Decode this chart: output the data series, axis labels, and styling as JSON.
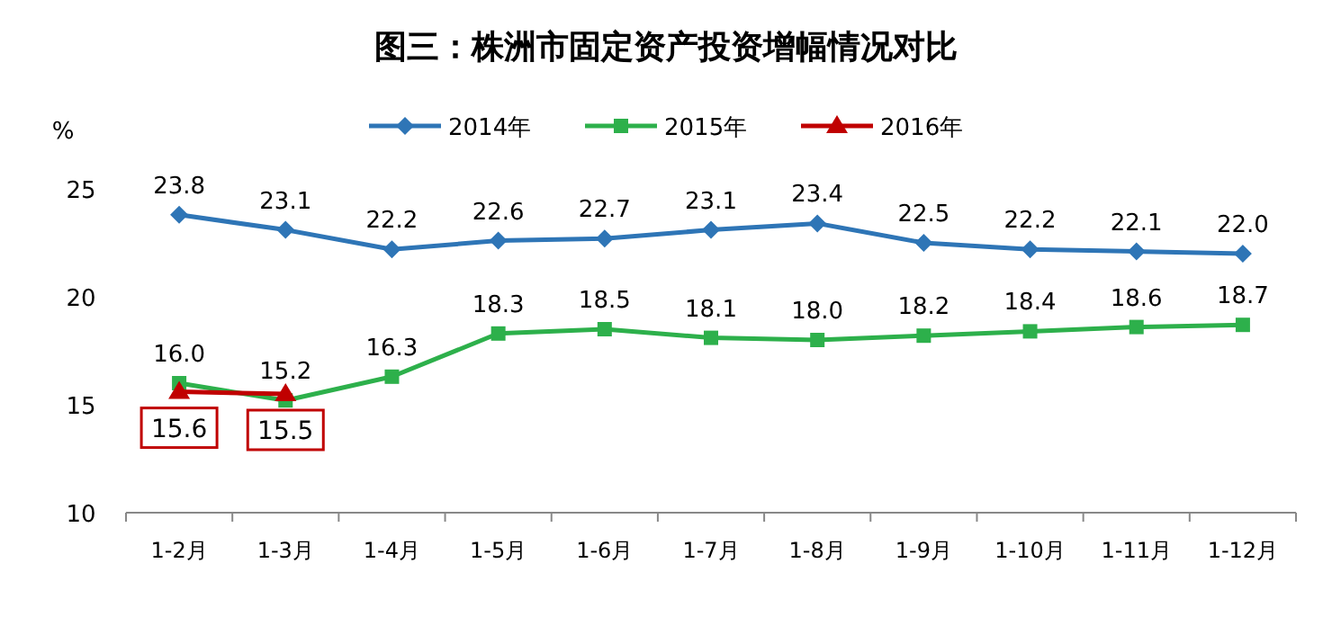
{
  "chart_data": {
    "type": "line",
    "title": "图三：株洲市固定资产投资增幅情况对比",
    "ylabel": "%",
    "categories": [
      "1-2月",
      "1-3月",
      "1-4月",
      "1-5月",
      "1-6月",
      "1-7月",
      "1-8月",
      "1-9月",
      "1-10月",
      "1-11月",
      "1-12月"
    ],
    "series": [
      {
        "name": "2014年",
        "color": "#2e75b6",
        "marker": "diamond",
        "values": [
          23.8,
          23.1,
          22.2,
          22.6,
          22.7,
          23.1,
          23.4,
          22.5,
          22.2,
          22.1,
          22.0
        ],
        "value_labels": [
          "23.8",
          "23.1",
          "22.2",
          "22.6",
          "22.7",
          "23.1",
          "23.4",
          "22.5",
          "22.2",
          "22.1",
          "22.0"
        ]
      },
      {
        "name": "2015年",
        "color": "#2db04b",
        "marker": "square",
        "values": [
          16.0,
          15.2,
          16.3,
          18.3,
          18.5,
          18.1,
          18.0,
          18.2,
          18.4,
          18.6,
          18.7
        ],
        "value_labels": [
          "16.0",
          "15.2",
          "16.3",
          "18.3",
          "18.5",
          "18.1",
          "18.0",
          "18.2",
          "18.4",
          "18.6",
          "18.7"
        ]
      },
      {
        "name": "2016年",
        "color": "#c00000",
        "marker": "triangle",
        "values": [
          15.6,
          15.5,
          null,
          null,
          null,
          null,
          null,
          null,
          null,
          null,
          null
        ],
        "value_labels": [
          "15.6",
          "15.5",
          null,
          null,
          null,
          null,
          null,
          null,
          null,
          null,
          null
        ]
      }
    ],
    "ylim": [
      10,
      25
    ],
    "yticks": [
      10,
      15,
      20,
      25
    ],
    "legend": "top"
  }
}
